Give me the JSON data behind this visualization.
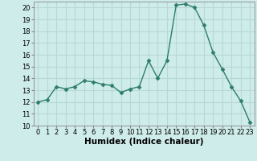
{
  "x": [
    0,
    1,
    2,
    3,
    4,
    5,
    6,
    7,
    8,
    9,
    10,
    11,
    12,
    13,
    14,
    15,
    16,
    17,
    18,
    19,
    20,
    21,
    22,
    23
  ],
  "y": [
    12.0,
    12.2,
    13.3,
    13.1,
    13.3,
    13.8,
    13.7,
    13.5,
    13.4,
    12.8,
    13.1,
    13.3,
    15.5,
    14.0,
    15.5,
    20.2,
    20.3,
    20.0,
    18.5,
    16.2,
    14.8,
    13.3,
    12.1,
    10.3
  ],
  "line_color": "#2e7d6e",
  "marker": "D",
  "marker_size": 2.5,
  "bg_color": "#ceecea",
  "grid_color": "#b8d8d6",
  "xlabel": "Humidex (Indice chaleur)",
  "xlim": [
    -0.5,
    23.5
  ],
  "ylim": [
    10,
    20.5
  ],
  "yticks": [
    10,
    11,
    12,
    13,
    14,
    15,
    16,
    17,
    18,
    19,
    20
  ],
  "xticks": [
    0,
    1,
    2,
    3,
    4,
    5,
    6,
    7,
    8,
    9,
    10,
    11,
    12,
    13,
    14,
    15,
    16,
    17,
    18,
    19,
    20,
    21,
    22,
    23
  ],
  "tick_fontsize": 6,
  "label_fontsize": 7.5,
  "line_width": 1.0
}
